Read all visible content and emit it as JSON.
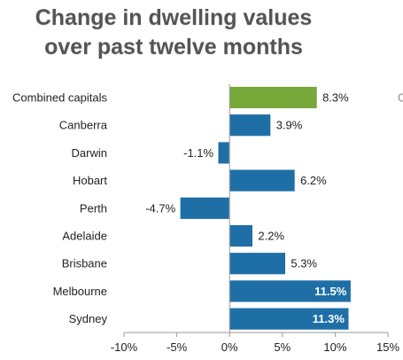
{
  "chart_data": {
    "type": "bar",
    "orientation": "horizontal",
    "title_lines": [
      "Change in dwelling values",
      "over past twelve months"
    ],
    "categories": [
      "Combined capitals",
      "Canberra",
      "Darwin",
      "Hobart",
      "Perth",
      "Adelaide",
      "Brisbane",
      "Melbourne",
      "Sydney"
    ],
    "values": [
      8.3,
      3.9,
      -1.1,
      6.2,
      -4.7,
      2.2,
      5.3,
      11.5,
      11.3
    ],
    "data_labels": [
      "8.3%",
      "3.9%",
      "-1.1%",
      "6.2%",
      "-4.7%",
      "2.2%",
      "5.3%",
      "11.5%",
      "11.3%"
    ],
    "xlim": [
      -10,
      15
    ],
    "x_ticks": [
      -10,
      -5,
      0,
      5,
      10,
      15
    ],
    "x_tick_labels": [
      "-10%",
      "-5%",
      "0%",
      "5%",
      "10%",
      "15%"
    ],
    "grid": false,
    "colors": {
      "highlight": "#77a83a",
      "default": "#1f6fa7",
      "axis": "#9a9a9a"
    },
    "highlight_category": "Combined capitals",
    "inside_label_categories": [
      "Melbourne",
      "Sydney"
    ],
    "edge_glyph": "C"
  }
}
